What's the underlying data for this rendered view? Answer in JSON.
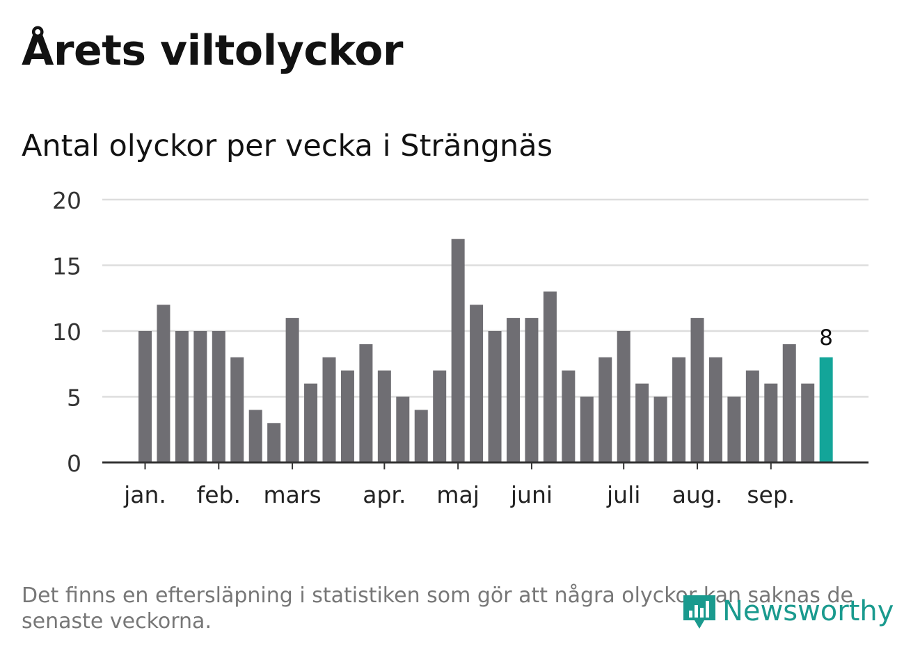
{
  "title": "Årets viltolyckor",
  "subtitle": "Antal olyckor per vecka i Strängnäs",
  "footnote": "Det finns en eftersläpning i statistiken som gör att några olyckor kan saknas de senaste veckorna.",
  "brand": "Newsworthy",
  "colors": {
    "bar": "#6f6e73",
    "highlight": "#13a599",
    "grid": "#dddddd",
    "axis": "#333333",
    "brand": "#1a9a8e"
  },
  "chart_data": {
    "type": "bar",
    "values": [
      10,
      12,
      10,
      10,
      10,
      8,
      4,
      3,
      11,
      6,
      8,
      7,
      9,
      7,
      5,
      4,
      7,
      17,
      12,
      10,
      11,
      11,
      13,
      7,
      5,
      8,
      10,
      6,
      5,
      8,
      11,
      8,
      5,
      7,
      6,
      9,
      6,
      8
    ],
    "highlight_last": true,
    "last_label": "8",
    "yticks": [
      0,
      5,
      10,
      15,
      20
    ],
    "ylim": [
      0,
      20
    ],
    "month_ticks": [
      {
        "label": "jan.",
        "week": 0.3
      },
      {
        "label": "feb.",
        "week": 4.3
      },
      {
        "label": "mars",
        "week": 8.3
      },
      {
        "label": "apr.",
        "week": 13.3
      },
      {
        "label": "maj",
        "week": 17.3
      },
      {
        "label": "juni",
        "week": 21.3
      },
      {
        "label": "juli",
        "week": 26.3
      },
      {
        "label": "aug.",
        "week": 30.3
      },
      {
        "label": "sep.",
        "week": 34.3
      }
    ],
    "grid": true
  }
}
